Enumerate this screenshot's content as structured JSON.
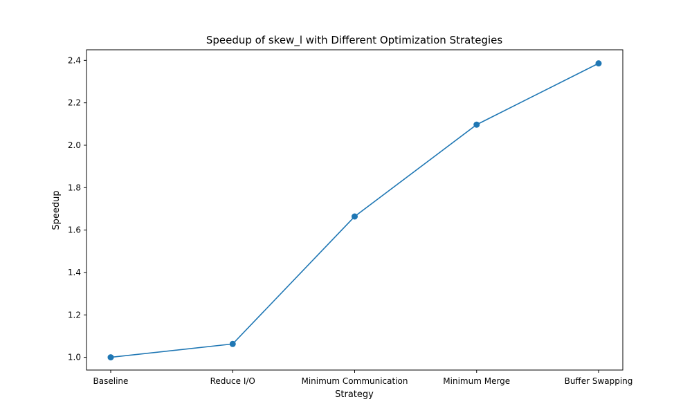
{
  "chart_data": {
    "type": "line",
    "title": "Speedup of skew_l with Different Optimization Strategies",
    "xlabel": "Strategy",
    "ylabel": "Speedup",
    "categories": [
      "Baseline",
      "Reduce I/O",
      "Minimum Communication",
      "Minimum Merge",
      "Buffer Swapping"
    ],
    "series": [
      {
        "values": [
          1.0,
          1.063,
          1.664,
          2.097,
          2.386
        ]
      }
    ],
    "ylim": [
      0.94,
      2.45
    ],
    "yticks": [
      "1.0",
      "1.2",
      "1.4",
      "1.6",
      "1.8",
      "2.0",
      "2.2",
      "2.4"
    ],
    "grid": false,
    "color": "#1f77b4",
    "marker": "circle"
  }
}
